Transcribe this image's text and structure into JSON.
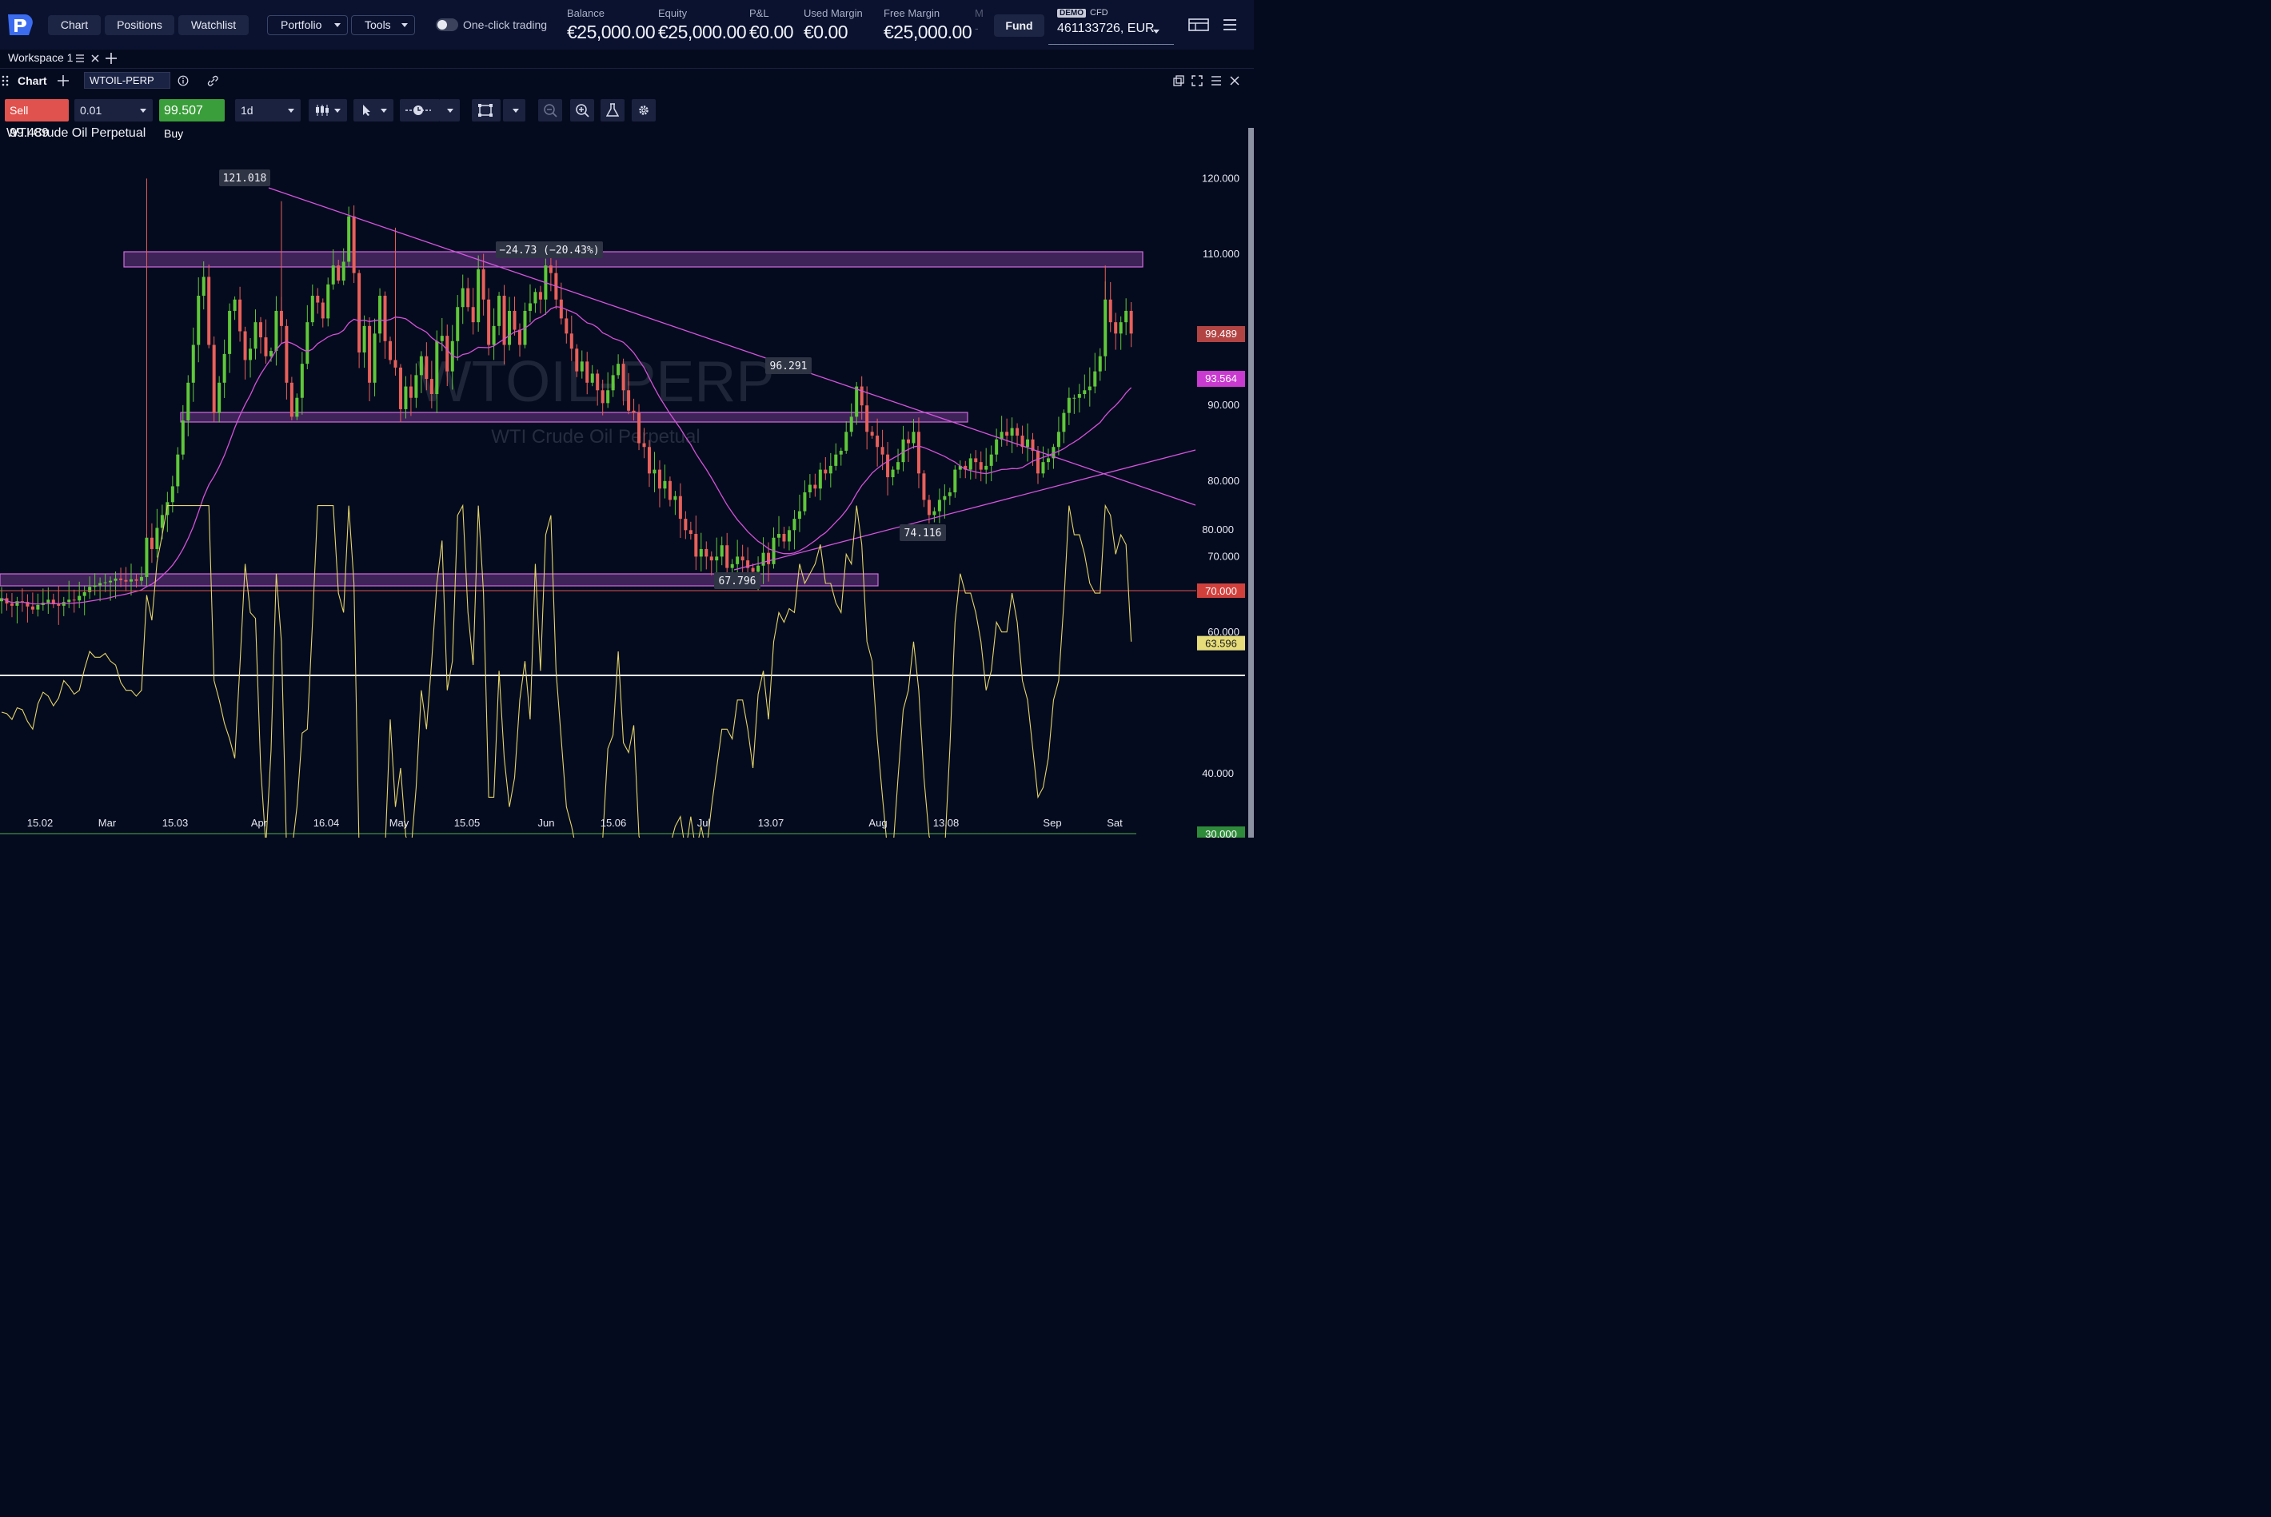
{
  "topbar": {
    "nav": [
      "Chart",
      "Positions",
      "Watchlist"
    ],
    "portfolio": "Portfolio",
    "tools": "Tools",
    "one_click": "One-click trading",
    "stats": [
      {
        "label": "Balance",
        "value": "€25,000.00"
      },
      {
        "label": "Equity",
        "value": "€25,000.00"
      },
      {
        "label": "P&L",
        "value": "€0.00"
      },
      {
        "label": "Used Margin",
        "value": "€0.00"
      },
      {
        "label": "Free Margin",
        "value": "€25,000.00"
      },
      {
        "label": "M",
        "value": "-"
      }
    ],
    "fund": "Fund",
    "demo": "DEMO",
    "cfd": "CFD",
    "account": "461133726, EUR"
  },
  "workspace": {
    "tab": "Workspace 1"
  },
  "chart_panel": {
    "title": "Chart",
    "symbol": "WTOIL-PERP",
    "sell_label": "Sell",
    "sell_price": "99.489",
    "quantity": "0.01",
    "buy_price": "99.507",
    "buy_label": "Buy",
    "timeframe": "1d",
    "instrument_name": "WTI Crude Oil Perpetual",
    "watermark": "WTOIL-PERP",
    "watermark_sub": "WTI Crude Oil Perpetual"
  },
  "chart_data": {
    "type": "candlestick",
    "title": "WTI Crude Oil Perpetual",
    "y_ticks": [
      "120.000",
      "110.000",
      "100.000",
      "90.000",
      "80.000",
      "70.000",
      "60.000"
    ],
    "ylim": [
      57,
      125
    ],
    "x_ticks": [
      "15.02",
      "Mar",
      "15.03",
      "Apr",
      "16.04",
      "May",
      "15.05",
      "Jun",
      "15.06",
      "Jul",
      "13.07",
      "Aug",
      "13.08",
      "Sep",
      "Sat"
    ],
    "price_labels": {
      "last": "99.489",
      "ma": "93.564"
    },
    "annotations": [
      "121.018",
      "−24.73 (−20.43%)",
      "96.291",
      "67.796",
      "74.116"
    ],
    "close_series": [
      64.5,
      63.8,
      63.5,
      64.1,
      64.0,
      63.4,
      63.0,
      63.6,
      63.9,
      64.3,
      63.7,
      63.5,
      64.0,
      64.3,
      64.2,
      64.8,
      65.3,
      66.0,
      66.2,
      66.5,
      66.6,
      66.8,
      67.1,
      66.9,
      66.7,
      67.0,
      66.8,
      67.3,
      72.5,
      71.0,
      73.8,
      75.5,
      77.2,
      79.3,
      83.5,
      88.0,
      93.0,
      98.0,
      104.5,
      107.0,
      98.0,
      89.0,
      93.0,
      96.8,
      102.5,
      104.0,
      99.8,
      96.0,
      97.5,
      101.0,
      99.0,
      96.5,
      97.2,
      102.5,
      100.5,
      93.0,
      88.5,
      91.0,
      95.5,
      101.0,
      104.5,
      103.6,
      101.5,
      106.0,
      108.5,
      106.5,
      109.0,
      115.0,
      107.5,
      97.0,
      100.5,
      93.0,
      99.5,
      104.5,
      98.5,
      96.0,
      95.0,
      89.5,
      92.5,
      91.0,
      94.0,
      96.5,
      93.5,
      91.5,
      98.5,
      99.2,
      94.5,
      98.5,
      103.0,
      105.5,
      103.0,
      101.0,
      108.0,
      104.0,
      98.0,
      100.5,
      104.5,
      98.0,
      102.5,
      100.0,
      98.0,
      102.5,
      103.5,
      105.0,
      104.0,
      108.5,
      107.5,
      104.0,
      101.5,
      99.5,
      97.5,
      94.5,
      95.8,
      93.0,
      94.2,
      92.0,
      90.3,
      92.0,
      94.0,
      95.5,
      92.0,
      89.3,
      89.0,
      85.0,
      84.5,
      81.0,
      81.5,
      79.0,
      80.0,
      77.5,
      78.0,
      75.0,
      73.5,
      73.0,
      70.0,
      71.0,
      70.0,
      69.5,
      70.0,
      71.5,
      68.5,
      69.0,
      70.0,
      69.5,
      68.5,
      68.0,
      68.8,
      70.5,
      69.0,
      72.5,
      73.0,
      72.0,
      73.5,
      75.0,
      76.0,
      78.5,
      79.5,
      79.0,
      81.5,
      81.0,
      82.0,
      83.5,
      84.0,
      86.5,
      88.5,
      92.5,
      90.0,
      86.5,
      86.0,
      84.5,
      83.5,
      80.5,
      81.5,
      82.5,
      85.5,
      85.0,
      86.5,
      81.0,
      77.5,
      75.5,
      76.0,
      77.5,
      78.0,
      78.5,
      81.5,
      82.0,
      81.5,
      83.0,
      82.5,
      81.5,
      82.0,
      83.5,
      85.5,
      86.5,
      86.0,
      87.0,
      86.0,
      84.5,
      85.5,
      84.0,
      81.0,
      82.5,
      83.0,
      84.5,
      86.5,
      89.0,
      91.0,
      91.0,
      91.5,
      92.0,
      92.5,
      94.5,
      96.5,
      104.0,
      101.0,
      99.5,
      101.0,
      102.5,
      99.5
    ]
  },
  "rsi": {
    "labels": [
      "80.000",
      "70.000",
      "63.596",
      "40.000",
      "30.000"
    ]
  }
}
